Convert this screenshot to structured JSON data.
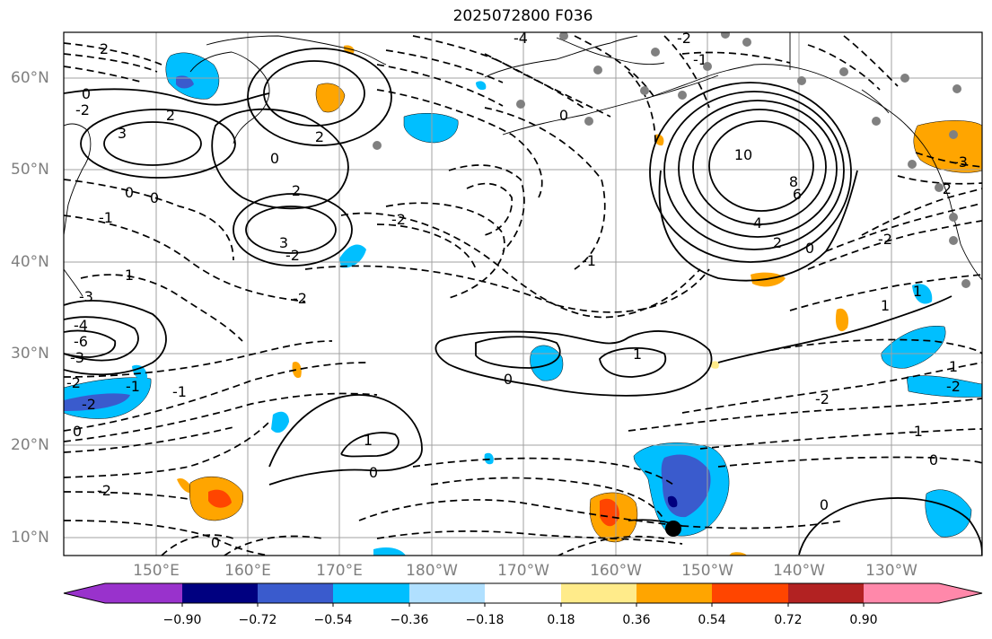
{
  "title": "2025072800 F036",
  "map": {
    "lat_labels": [
      "60°N",
      "50°N",
      "40°N",
      "30°N",
      "20°N",
      "10°N"
    ],
    "lon_labels": [
      "150°E",
      "160°E",
      "170°E",
      "180°W",
      "170°W",
      "160°W",
      "150°W",
      "140°W",
      "130°W"
    ],
    "contour_labels": [
      "2",
      "0",
      "-2",
      "3",
      "2",
      "0",
      "2",
      "3",
      "2",
      "-2",
      "-4",
      "0",
      "-2",
      "-1",
      "-1",
      "0",
      "1",
      "-3",
      "-4",
      "-6",
      "-3",
      "-2",
      "-1",
      "-2",
      "0",
      "-1",
      "0",
      "1",
      "-2",
      "-2",
      "-2",
      "10",
      "8",
      "6",
      "4",
      "2",
      "0",
      "1",
      "-2",
      "1",
      "-1",
      "-2",
      "0",
      "1",
      "1",
      "0",
      "0",
      "0",
      "-1",
      "-2",
      "0",
      "-3",
      "-2"
    ]
  },
  "colorbar": {
    "colors": [
      "#9932cc",
      "#000080",
      "#3a5bcd",
      "#00bfff",
      "#b0e0ff",
      "#ffffff",
      "#ffeb8a",
      "#ffa500",
      "#ff4500",
      "#b22222",
      "#ff88aa"
    ],
    "tick_labels": [
      "−0.90",
      "−0.72",
      "−0.54",
      "−0.36",
      "−0.18",
      "0.18",
      "0.36",
      "0.54",
      "0.72",
      "0.90"
    ]
  }
}
